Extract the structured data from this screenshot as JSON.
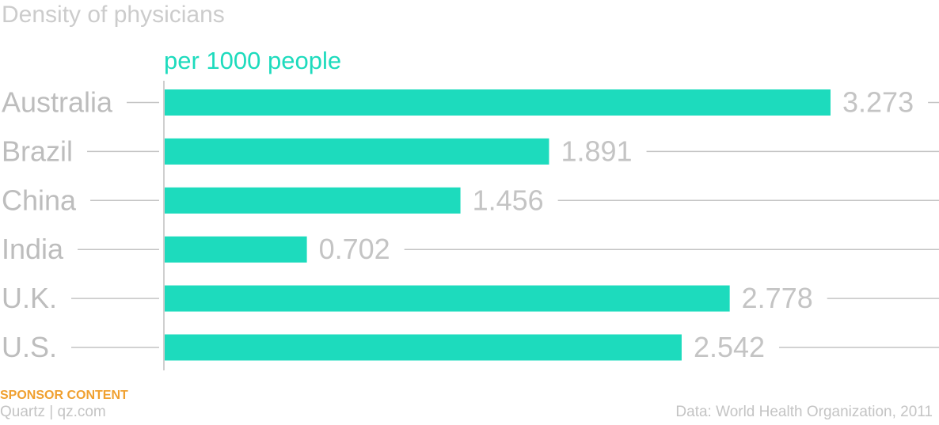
{
  "colors": {
    "bar": "#1ddbbd",
    "rule": "#c4c4c4",
    "axis": "#cfcfcf",
    "sponsor": "#f0a030"
  },
  "footer": {
    "sponsor": "SPONSOR CONTENT",
    "credit": "Quartz | qz.com",
    "source": "Data: World Health Organization, 2011"
  },
  "chart_data": {
    "type": "bar",
    "orientation": "horizontal",
    "title": "Density of physicians",
    "subtitle": "per 1000 people",
    "xlabel": "",
    "ylabel": "",
    "categories": [
      "Australia",
      "Brazil",
      "China",
      "India",
      "U.K.",
      "U.S."
    ],
    "values": [
      3.273,
      1.891,
      1.456,
      0.702,
      2.778,
      2.542
    ],
    "value_labels": [
      "3.273",
      "1.891",
      "1.456",
      "0.702",
      "2.778",
      "2.542"
    ],
    "xlim": [
      0,
      3.273
    ],
    "grid": false,
    "legend": "none"
  }
}
